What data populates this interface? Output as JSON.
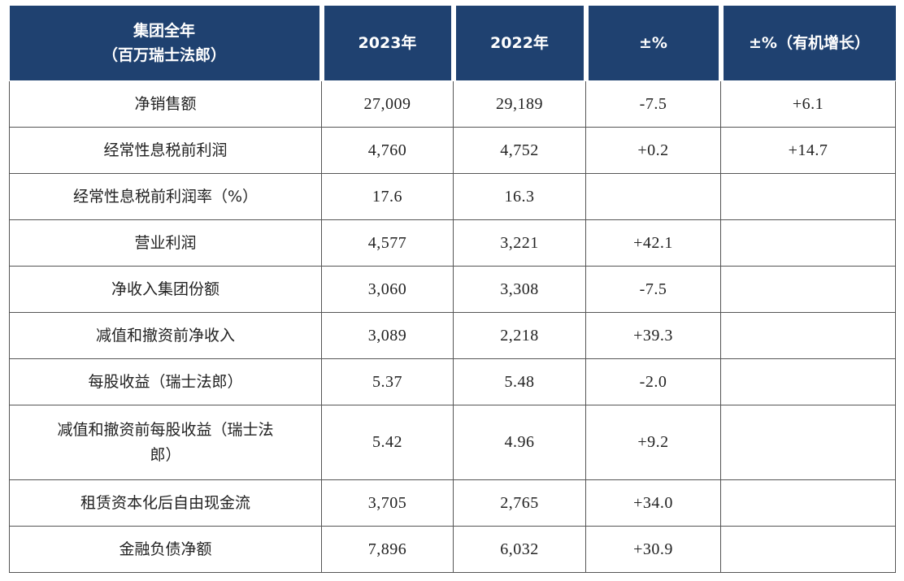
{
  "table": {
    "header": [
      [
        "集团全年",
        "（百万瑞士法郎）"
      ],
      "2023年",
      "2022年",
      "±%",
      "±%（有机增长）"
    ],
    "rows": [
      [
        "净销售额",
        "27,009",
        "29,189",
        "-7.5",
        "+6.1"
      ],
      [
        "经常性息税前利润",
        "4,760",
        "4,752",
        "+0.2",
        "+14.7"
      ],
      [
        "经常性息税前利润率（%）",
        "17.6",
        "16.3",
        null,
        null
      ],
      [
        "营业利润",
        "4,577",
        "3,221",
        "+42.1",
        null
      ],
      [
        "净收入集团份额",
        "3,060",
        "3,308",
        "-7.5",
        null
      ],
      [
        "减值和撤资前净收入",
        "3,089",
        "2,218",
        "+39.3",
        null
      ],
      [
        "每股收益（瑞士法郎）",
        "5.37",
        "5.48",
        "-2.0",
        null
      ],
      [
        "减值和撤资前每股收益（瑞士法郎）",
        "5.42",
        "4.96",
        "+9.2",
        null
      ],
      [
        "租赁资本化后自由现金流",
        "3,705",
        "2,765",
        "+34.0",
        null
      ],
      [
        "金融负债净额",
        "7,896",
        "6,032",
        "+30.9",
        null
      ]
    ]
  }
}
